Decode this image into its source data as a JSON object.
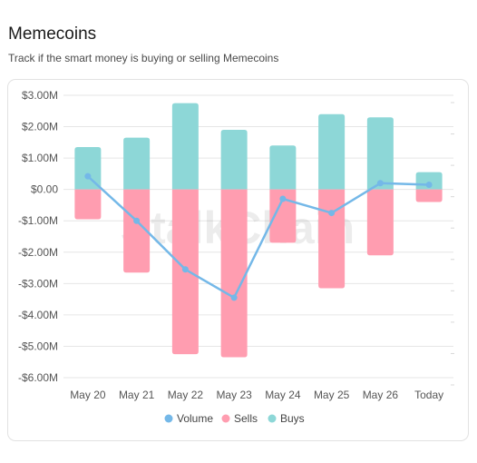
{
  "header": {
    "title": "Memecoins",
    "subtitle": "Track if the smart money is buying or selling Memecoins"
  },
  "watermark": "StalkChain",
  "colors": {
    "buys": "#8dd7d7",
    "sells": "#ff9db0",
    "volume": "#74b8e8",
    "grid": "#e6e6e6"
  },
  "chart_data": {
    "type": "bar",
    "stacked": true,
    "categories": [
      "May 20",
      "May 21",
      "May 22",
      "May 23",
      "May 24",
      "May 25",
      "May 26",
      "Today"
    ],
    "ylim": [
      -6.0,
      3.0
    ],
    "yticks": [
      3,
      2,
      1,
      0,
      -1,
      -2,
      -3,
      -4,
      -5,
      -6
    ],
    "ytick_labels": [
      "$3.00M",
      "$2.00M",
      "$1.00M",
      "$0.00",
      "-$1.00M",
      "-$2.00M",
      "-$3.00M",
      "-$4.00M",
      "-$5.00M",
      "-$6.00M"
    ],
    "units": "USD millions",
    "grid": true,
    "legend_position": "bottom",
    "series": [
      {
        "name": "Volume",
        "type": "line",
        "values": [
          0.42,
          -1.0,
          -2.55,
          -3.45,
          -0.3,
          -0.75,
          0.2,
          0.15
        ]
      },
      {
        "name": "Sells",
        "type": "bar",
        "values": [
          -0.95,
          -2.65,
          -5.25,
          -5.35,
          -1.7,
          -3.15,
          -2.1,
          -0.4
        ]
      },
      {
        "name": "Buys",
        "type": "bar",
        "values": [
          1.35,
          1.65,
          2.75,
          1.9,
          1.4,
          2.4,
          2.3,
          0.55
        ]
      }
    ]
  }
}
